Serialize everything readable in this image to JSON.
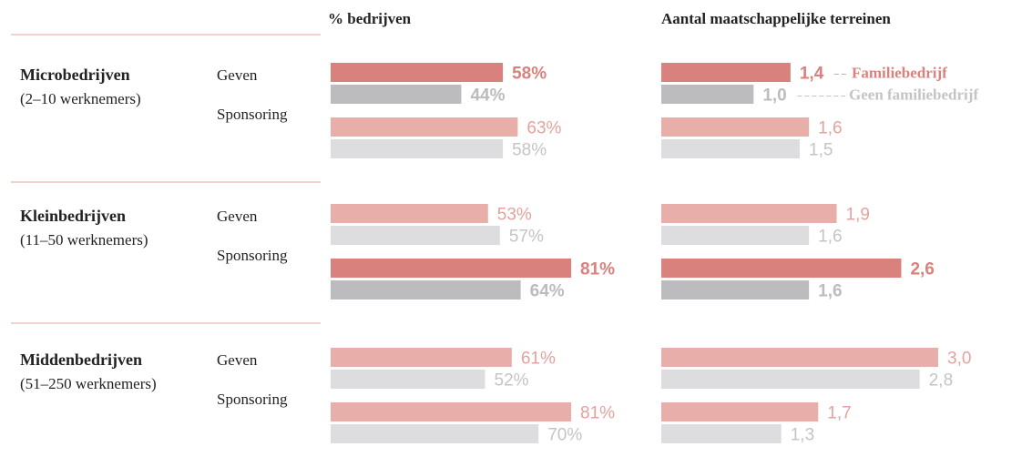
{
  "groups": [
    {
      "name": "Microbedrijven",
      "subtitle": "(2–10 werknemers)"
    },
    {
      "name": "Kleinbedrijven",
      "subtitle": "(11–50 werknemers)"
    },
    {
      "name": "Middenbedrijven",
      "subtitle": "(51–250 werknemers)"
    }
  ],
  "chart_data": [
    {
      "type": "bar",
      "orientation": "horizontal",
      "title": "% bedrijven",
      "categories": [
        "Geven",
        "Sponsoring",
        "Geven",
        "Sponsoring",
        "Geven",
        "Sponsoring"
      ],
      "highlight": [
        0,
        3
      ],
      "xlim": [
        0,
        100
      ],
      "series": [
        {
          "name": "Familiebedrijf",
          "color": "#e8aea9",
          "highlight_color": "#d9817c",
          "label_color": "#e5a29c",
          "values": [
            58,
            63,
            53,
            81,
            61,
            81
          ],
          "value_labels": [
            "58%",
            "63%",
            "53%",
            "81%",
            "61%",
            "81%"
          ]
        },
        {
          "name": "Geen familiebedrijf",
          "color": "#dddddf",
          "highlight_color": "#bcbcbf",
          "label_color": "#c4c4c6",
          "values": [
            44,
            58,
            57,
            64,
            52,
            70
          ],
          "value_labels": [
            "44%",
            "58%",
            "57%",
            "64%",
            "52%",
            "70%"
          ]
        }
      ]
    },
    {
      "type": "bar",
      "orientation": "horizontal",
      "title": "Aantal maatschappelijke terreinen",
      "highlight": [
        0,
        3
      ],
      "xlim": [
        0,
        3
      ],
      "series": [
        {
          "name": "Familiebedrijf",
          "color": "#e8aea9",
          "highlight_color": "#d9817c",
          "label_color": "#e5a29c",
          "values": [
            1.4,
            1.6,
            1.9,
            2.6,
            3.0,
            1.7
          ],
          "value_labels": [
            "1,4",
            "1,6",
            "1,9",
            "2,6",
            "3,0",
            "1,7"
          ]
        },
        {
          "name": "Geen familiebedrijf",
          "color": "#dddddf",
          "highlight_color": "#bcbcbf",
          "label_color": "#c4c4c6",
          "values": [
            1.0,
            1.5,
            1.6,
            1.6,
            2.8,
            1.3
          ],
          "value_labels": [
            "1,0",
            "1,5",
            "1,6",
            "1,6",
            "2,8",
            "1,3"
          ]
        }
      ]
    }
  ]
}
